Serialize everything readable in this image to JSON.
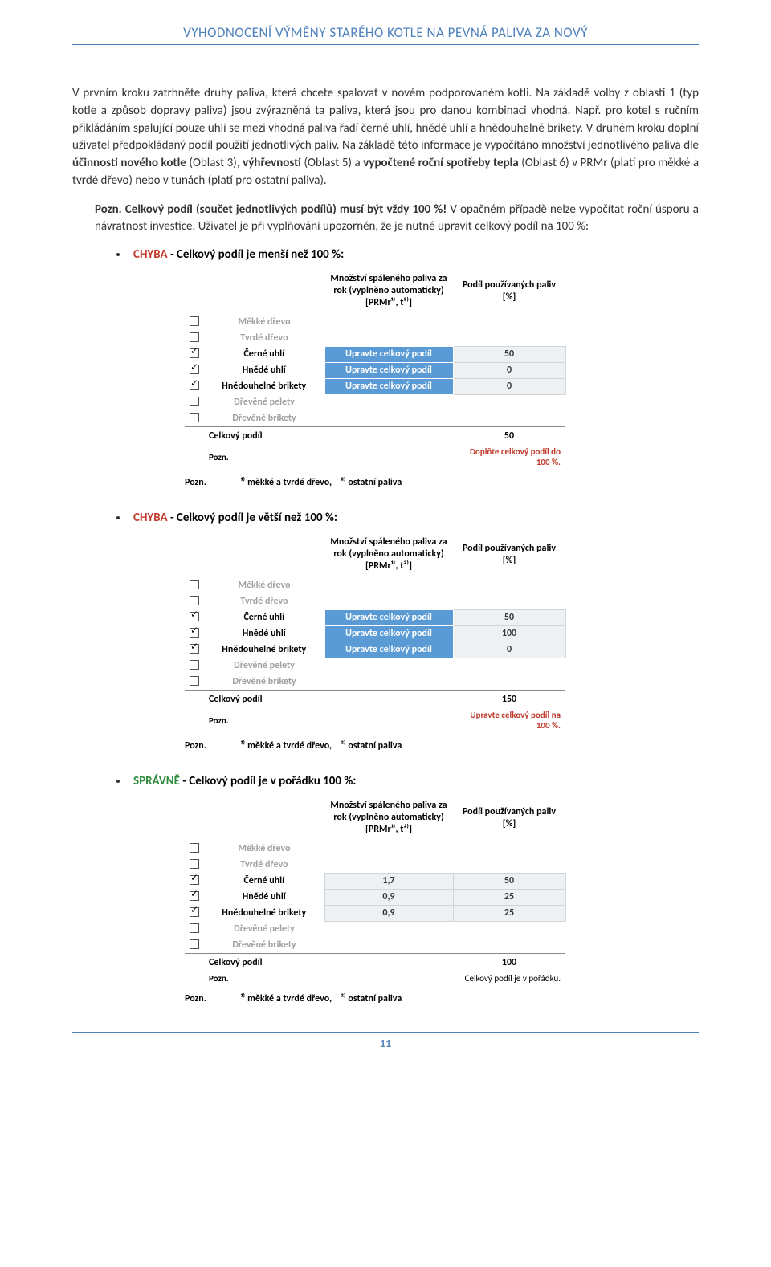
{
  "header": "VYHODNOCENÍ VÝMĚNY STARÉHO KOTLE NA PEVNÁ PALIVA ZA NOVÝ",
  "para1_pre": "V prvním kroku zatrhněte druhy paliva, která chcete spalovat v novém podporovaném kotli. Na základě volby z oblasti 1 (typ kotle a způsob dopravy paliva) jsou zvýrazněná ta paliva, která jsou pro danou kombinaci vhodná. Např. pro kotel s ručním přikládáním spalující pouze uhlí se mezi vhodná paliva řadí černé uhlí, hnědé uhlí a hnědouhelné brikety. V druhém kroku doplní uživatel předpokládaný podíl použití jednotlivých paliv. Na základě této informace je vypočítáno množství jednotlivého paliva dle ",
  "para1_b1": "účinnosti nového kotle",
  "para1_mid1": " (Oblast 3), ",
  "para1_b2": "výhřevnosti",
  "para1_mid2": " (Oblast 5) a ",
  "para1_b3": "vypočtené roční spotřeby tepla",
  "para1_post": " (Oblast 6) v PRMr (platí pro měkké a tvrdé dřevo) nebo v tunách (platí pro ostatní paliva).",
  "note_b1": "Pozn. Celkový podíl (součet jednotlivých podílů) musí být vždy 100 %!",
  "note_rest": " V opačném případě nelze vypočítat roční úsporu a návratnost investice. Uživatel je při vyplňování upozorněn, že je nutné upravit celkový podíl na 100 %:",
  "bullet1_red": "CHYBA",
  "bullet1_rest": " - Celkový podíl je menší než 100 %:",
  "bullet2_red": "CHYBA",
  "bullet2_rest": " - Celkový podíl je větší než 100 %:",
  "bullet3_green": "SPRÁVNĚ",
  "bullet3_rest": " - Celkový podíl je v pořádku 100 %:",
  "tbl_header_amt_l1": "Množství spáleného paliva za",
  "tbl_header_amt_l2": "rok (vyplněno automaticky)",
  "tbl_header_amt_l3": "[PRMr¹⁾, t²⁾]",
  "tbl_header_pct_l1": "Podíl používaných paliv",
  "tbl_header_pct_l2": "[%]",
  "fuels": [
    {
      "name": "Měkké dřevo",
      "gray": true
    },
    {
      "name": "Tvrdé dřevo",
      "gray": true
    },
    {
      "name": "Černé uhlí",
      "gray": false
    },
    {
      "name": "Hnědé uhlí",
      "gray": false
    },
    {
      "name": "Hnědouhelné brikety",
      "gray": false
    },
    {
      "name": "Dřevěné pelety",
      "gray": true
    },
    {
      "name": "Dřevěné brikety",
      "gray": true
    }
  ],
  "msg_upravte": "Upravte celkový podíl",
  "lbl_celkovy": "Celkový podíl",
  "lbl_pozn": "Pozn.",
  "t1": {
    "checked": [
      false,
      false,
      true,
      true,
      true,
      false,
      false
    ],
    "pct": [
      "",
      "",
      "50",
      "0",
      "0",
      "",
      ""
    ],
    "total": "50",
    "pozn_msg": "Doplňte celkový podíl do 100 %.",
    "pozn_color": "red"
  },
  "t2": {
    "checked": [
      false,
      false,
      true,
      true,
      true,
      false,
      false
    ],
    "pct": [
      "",
      "",
      "50",
      "100",
      "0",
      "",
      ""
    ],
    "total": "150",
    "pozn_msg": "Upravte celkový podíl na 100 %.",
    "pozn_color": "red"
  },
  "t3": {
    "checked": [
      false,
      false,
      true,
      true,
      true,
      false,
      false
    ],
    "amt": [
      "",
      "",
      "1,7",
      "0,9",
      "0,9",
      "",
      ""
    ],
    "pct": [
      "",
      "",
      "50",
      "25",
      "25",
      "",
      ""
    ],
    "total": "100",
    "pozn_msg": "Celkový podíl je v pořádku.",
    "pozn_color": "black"
  },
  "footnote_pozn": "Pozn.",
  "footnote_1": "¹⁾ měkké a tvrdé dřevo,",
  "footnote_2": "²⁾ ostatní paliva",
  "page_num": "11"
}
